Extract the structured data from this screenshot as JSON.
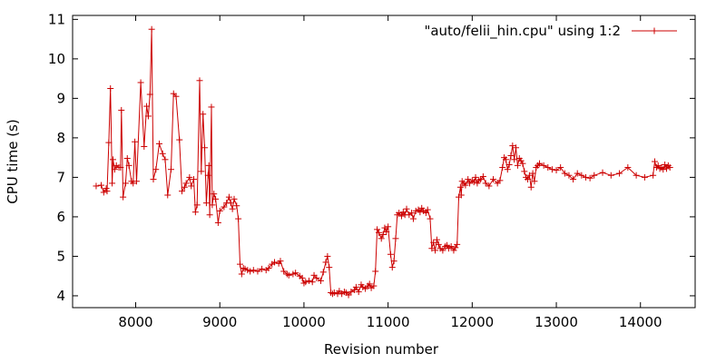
{
  "chart_data": {
    "type": "line",
    "title": "",
    "xlabel": "Revision number",
    "ylabel": "CPU time (s)",
    "xlim": [
      7250,
      14650
    ],
    "ylim": [
      3.7,
      11.1
    ],
    "xticks": [
      8000,
      9000,
      10000,
      11000,
      12000,
      13000,
      14000
    ],
    "yticks": [
      4,
      5,
      6,
      7,
      8,
      9,
      10,
      11
    ],
    "grid": false,
    "legend_position": "top-right",
    "colors": {
      "series": "#cc0000",
      "axis": "#000000",
      "background": "#ffffff"
    },
    "series": [
      {
        "name": "\"auto/felii_hin.cpu\" using 1:2",
        "marker": "plus",
        "points": [
          [
            7530,
            6.78
          ],
          [
            7590,
            6.8
          ],
          [
            7620,
            6.62
          ],
          [
            7650,
            6.72
          ],
          [
            7660,
            6.65
          ],
          [
            7680,
            7.88
          ],
          [
            7700,
            9.25
          ],
          [
            7720,
            6.85
          ],
          [
            7730,
            7.45
          ],
          [
            7750,
            7.2
          ],
          [
            7770,
            7.3
          ],
          [
            7800,
            7.25
          ],
          [
            7820,
            7.25
          ],
          [
            7830,
            8.7
          ],
          [
            7850,
            6.5
          ],
          [
            7880,
            6.85
          ],
          [
            7900,
            7.48
          ],
          [
            7920,
            7.3
          ],
          [
            7950,
            6.9
          ],
          [
            7970,
            6.85
          ],
          [
            7990,
            7.9
          ],
          [
            8010,
            6.9
          ],
          [
            8060,
            9.4
          ],
          [
            8100,
            7.78
          ],
          [
            8130,
            8.8
          ],
          [
            8150,
            8.55
          ],
          [
            8170,
            9.1
          ],
          [
            8190,
            10.75
          ],
          [
            8210,
            6.95
          ],
          [
            8240,
            7.2
          ],
          [
            8280,
            7.85
          ],
          [
            8320,
            7.6
          ],
          [
            8350,
            7.45
          ],
          [
            8380,
            6.55
          ],
          [
            8420,
            7.2
          ],
          [
            8450,
            9.12
          ],
          [
            8480,
            9.05
          ],
          [
            8520,
            7.95
          ],
          [
            8550,
            6.65
          ],
          [
            8580,
            6.75
          ],
          [
            8600,
            6.85
          ],
          [
            8640,
            7.0
          ],
          [
            8660,
            6.78
          ],
          [
            8690,
            6.95
          ],
          [
            8710,
            6.12
          ],
          [
            8730,
            6.3
          ],
          [
            8760,
            9.45
          ],
          [
            8780,
            7.15
          ],
          [
            8800,
            8.6
          ],
          [
            8820,
            7.75
          ],
          [
            8840,
            6.35
          ],
          [
            8860,
            7.05
          ],
          [
            8870,
            7.3
          ],
          [
            8880,
            6.05
          ],
          [
            8900,
            8.78
          ],
          [
            8910,
            6.3
          ],
          [
            8930,
            6.58
          ],
          [
            8950,
            6.45
          ],
          [
            8980,
            5.85
          ],
          [
            9000,
            6.15
          ],
          [
            9050,
            6.25
          ],
          [
            9080,
            6.35
          ],
          [
            9110,
            6.5
          ],
          [
            9130,
            6.35
          ],
          [
            9150,
            6.2
          ],
          [
            9170,
            6.45
          ],
          [
            9200,
            6.28
          ],
          [
            9220,
            5.95
          ],
          [
            9240,
            4.8
          ],
          [
            9260,
            4.55
          ],
          [
            9280,
            4.7
          ],
          [
            9300,
            4.68
          ],
          [
            9330,
            4.65
          ],
          [
            9360,
            4.62
          ],
          [
            9400,
            4.65
          ],
          [
            9450,
            4.62
          ],
          [
            9500,
            4.68
          ],
          [
            9550,
            4.65
          ],
          [
            9580,
            4.7
          ],
          [
            9620,
            4.8
          ],
          [
            9650,
            4.85
          ],
          [
            9700,
            4.82
          ],
          [
            9720,
            4.88
          ],
          [
            9760,
            4.62
          ],
          [
            9800,
            4.55
          ],
          [
            9820,
            4.52
          ],
          [
            9870,
            4.55
          ],
          [
            9900,
            4.58
          ],
          [
            9950,
            4.5
          ],
          [
            9980,
            4.45
          ],
          [
            10000,
            4.32
          ],
          [
            10020,
            4.35
          ],
          [
            10060,
            4.38
          ],
          [
            10100,
            4.35
          ],
          [
            10120,
            4.52
          ],
          [
            10150,
            4.45
          ],
          [
            10200,
            4.38
          ],
          [
            10230,
            4.6
          ],
          [
            10260,
            4.85
          ],
          [
            10280,
            5.0
          ],
          [
            10300,
            4.72
          ],
          [
            10320,
            4.08
          ],
          [
            10340,
            4.05
          ],
          [
            10360,
            4.08
          ],
          [
            10400,
            4.05
          ],
          [
            10420,
            4.12
          ],
          [
            10450,
            4.05
          ],
          [
            10480,
            4.1
          ],
          [
            10500,
            4.08
          ],
          [
            10530,
            4.02
          ],
          [
            10560,
            4.1
          ],
          [
            10600,
            4.15
          ],
          [
            10620,
            4.22
          ],
          [
            10650,
            4.1
          ],
          [
            10680,
            4.28
          ],
          [
            10700,
            4.22
          ],
          [
            10730,
            4.18
          ],
          [
            10760,
            4.25
          ],
          [
            10780,
            4.3
          ],
          [
            10800,
            4.2
          ],
          [
            10830,
            4.25
          ],
          [
            10850,
            4.62
          ],
          [
            10870,
            5.68
          ],
          [
            10890,
            5.6
          ],
          [
            10920,
            5.45
          ],
          [
            10940,
            5.55
          ],
          [
            10960,
            5.72
          ],
          [
            10980,
            5.62
          ],
          [
            11000,
            5.75
          ],
          [
            11030,
            5.05
          ],
          [
            11050,
            4.72
          ],
          [
            11070,
            4.88
          ],
          [
            11090,
            5.45
          ],
          [
            11110,
            6.05
          ],
          [
            11130,
            6.1
          ],
          [
            11160,
            6.02
          ],
          [
            11180,
            6.12
          ],
          [
            11200,
            6.05
          ],
          [
            11220,
            6.2
          ],
          [
            11250,
            6.05
          ],
          [
            11280,
            6.1
          ],
          [
            11300,
            5.95
          ],
          [
            11330,
            6.15
          ],
          [
            11360,
            6.18
          ],
          [
            11380,
            6.12
          ],
          [
            11400,
            6.22
          ],
          [
            11420,
            6.15
          ],
          [
            11450,
            6.1
          ],
          [
            11470,
            6.18
          ],
          [
            11500,
            5.95
          ],
          [
            11520,
            5.2
          ],
          [
            11540,
            5.35
          ],
          [
            11560,
            5.15
          ],
          [
            11580,
            5.42
          ],
          [
            11600,
            5.3
          ],
          [
            11620,
            5.2
          ],
          [
            11650,
            5.15
          ],
          [
            11680,
            5.25
          ],
          [
            11700,
            5.28
          ],
          [
            11720,
            5.2
          ],
          [
            11750,
            5.25
          ],
          [
            11780,
            5.15
          ],
          [
            11800,
            5.22
          ],
          [
            11820,
            5.3
          ],
          [
            11840,
            6.5
          ],
          [
            11860,
            6.75
          ],
          [
            11870,
            6.55
          ],
          [
            11880,
            6.9
          ],
          [
            11900,
            6.85
          ],
          [
            11920,
            6.8
          ],
          [
            11950,
            6.95
          ],
          [
            11970,
            6.85
          ],
          [
            12000,
            6.92
          ],
          [
            12020,
            6.88
          ],
          [
            12040,
            7.0
          ],
          [
            12060,
            6.85
          ],
          [
            12080,
            6.92
          ],
          [
            12100,
            6.95
          ],
          [
            12130,
            7.02
          ],
          [
            12160,
            6.85
          ],
          [
            12200,
            6.78
          ],
          [
            12250,
            6.95
          ],
          [
            12300,
            6.85
          ],
          [
            12330,
            6.92
          ],
          [
            12360,
            7.25
          ],
          [
            12380,
            7.5
          ],
          [
            12400,
            7.45
          ],
          [
            12420,
            7.2
          ],
          [
            12440,
            7.32
          ],
          [
            12460,
            7.55
          ],
          [
            12480,
            7.8
          ],
          [
            12500,
            7.45
          ],
          [
            12520,
            7.75
          ],
          [
            12540,
            7.3
          ],
          [
            12560,
            7.48
          ],
          [
            12580,
            7.42
          ],
          [
            12600,
            7.35
          ],
          [
            12620,
            7.15
          ],
          [
            12640,
            7.0
          ],
          [
            12660,
            6.95
          ],
          [
            12680,
            7.05
          ],
          [
            12700,
            6.75
          ],
          [
            12720,
            7.1
          ],
          [
            12740,
            6.9
          ],
          [
            12760,
            7.25
          ],
          [
            12780,
            7.3
          ],
          [
            12800,
            7.35
          ],
          [
            12850,
            7.3
          ],
          [
            12900,
            7.25
          ],
          [
            12950,
            7.2
          ],
          [
            13000,
            7.18
          ],
          [
            13050,
            7.25
          ],
          [
            13100,
            7.1
          ],
          [
            13150,
            7.05
          ],
          [
            13200,
            6.95
          ],
          [
            13250,
            7.1
          ],
          [
            13300,
            7.05
          ],
          [
            13350,
            7.0
          ],
          [
            13400,
            6.98
          ],
          [
            13450,
            7.05
          ],
          [
            13550,
            7.12
          ],
          [
            13650,
            7.05
          ],
          [
            13750,
            7.1
          ],
          [
            13850,
            7.25
          ],
          [
            13950,
            7.05
          ],
          [
            14050,
            7.0
          ],
          [
            14150,
            7.05
          ],
          [
            14170,
            7.4
          ],
          [
            14190,
            7.25
          ],
          [
            14210,
            7.3
          ],
          [
            14230,
            7.22
          ],
          [
            14250,
            7.25
          ],
          [
            14270,
            7.2
          ],
          [
            14290,
            7.32
          ],
          [
            14310,
            7.22
          ],
          [
            14330,
            7.3
          ],
          [
            14350,
            7.25
          ]
        ]
      }
    ]
  }
}
